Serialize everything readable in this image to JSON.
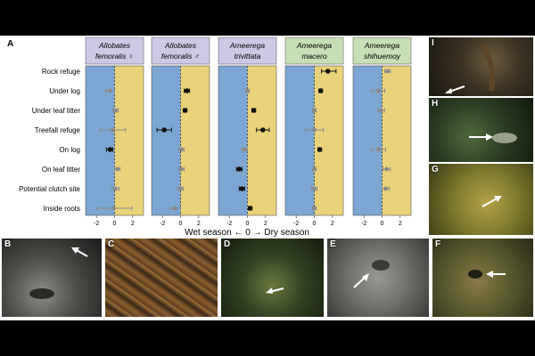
{
  "figure": {
    "main_panel_label": "A",
    "x_axis_caption": "Wet season ← 0 → Dry season",
    "photo_panels": [
      {
        "label": "B",
        "arrow": "arrow-icon"
      },
      {
        "label": "C",
        "arrow": ""
      },
      {
        "label": "D",
        "arrow": "arrow-icon"
      },
      {
        "label": "E",
        "arrow": "arrow-icon"
      },
      {
        "label": "F",
        "arrow": "arrow-icon"
      },
      {
        "label": "G",
        "arrow": "arrow-icon"
      },
      {
        "label": "H",
        "arrow": "arrow-icon"
      },
      {
        "label": "I",
        "arrow": "arrow-icon"
      }
    ]
  },
  "colors": {
    "wet": "#7aa6d1",
    "dry": "#ead27a",
    "header_purple": "#cfc7e6",
    "header_green": "#c6dfb4",
    "significant": "#111111",
    "nonsignificant": "#8a8a8a"
  },
  "chart_data": {
    "type": "forest_plot",
    "x_axis": {
      "ticks": [
        -2,
        0,
        2
      ],
      "range": [
        -3.2,
        3.2
      ]
    },
    "categories": [
      "Rock refuge",
      "Under log",
      "Under leaf litter",
      "Treefall refuge",
      "On log",
      "On leaf litter",
      "Potential clutch site",
      "Inside roots"
    ],
    "series": [
      {
        "name": "Allobates femoralis ♀",
        "header_color": "purple",
        "points": [
          {
            "est": null,
            "lo": null,
            "hi": null,
            "sig": false
          },
          {
            "est": -0.5,
            "lo": -1.0,
            "hi": 0.0,
            "sig": false
          },
          {
            "est": 0.1,
            "lo": -0.2,
            "hi": 0.4,
            "sig": false
          },
          {
            "est": -0.2,
            "lo": -1.6,
            "hi": 1.2,
            "sig": false
          },
          {
            "est": -0.5,
            "lo": -0.9,
            "hi": -0.2,
            "sig": true
          },
          {
            "est": 0.3,
            "lo": 0.0,
            "hi": 0.6,
            "sig": false
          },
          {
            "est": 0.1,
            "lo": -0.3,
            "hi": 0.5,
            "sig": false
          },
          {
            "est": -0.1,
            "lo": -2.0,
            "hi": 1.9,
            "sig": false
          }
        ]
      },
      {
        "name": "Allobates femoralis ♂",
        "header_color": "purple",
        "points": [
          {
            "est": null,
            "lo": null,
            "hi": null,
            "sig": false
          },
          {
            "est": 0.7,
            "lo": 0.4,
            "hi": 1.0,
            "sig": true
          },
          {
            "est": 0.5,
            "lo": 0.3,
            "hi": 0.7,
            "sig": true
          },
          {
            "est": -1.8,
            "lo": -2.6,
            "hi": -1.0,
            "sig": true
          },
          {
            "est": 0.1,
            "lo": -0.2,
            "hi": 0.4,
            "sig": false
          },
          {
            "est": 0.1,
            "lo": -0.2,
            "hi": 0.4,
            "sig": false
          },
          {
            "est": 0.0,
            "lo": -0.3,
            "hi": 0.3,
            "sig": false
          },
          {
            "est": -0.6,
            "lo": -1.2,
            "hi": 0.0,
            "sig": false
          }
        ]
      },
      {
        "name": "Ameerega trivittata",
        "header_color": "purple",
        "points": [
          {
            "est": null,
            "lo": null,
            "hi": null,
            "sig": false
          },
          {
            "est": 0.0,
            "lo": -0.2,
            "hi": 0.2,
            "sig": false
          },
          {
            "est": 0.7,
            "lo": 0.5,
            "hi": 0.9,
            "sig": true
          },
          {
            "est": 1.7,
            "lo": 1.0,
            "hi": 2.4,
            "sig": true
          },
          {
            "est": -0.3,
            "lo": -0.6,
            "hi": 0.0,
            "sig": false
          },
          {
            "est": -0.9,
            "lo": -1.2,
            "hi": -0.6,
            "sig": true
          },
          {
            "est": -0.6,
            "lo": -0.9,
            "hi": -0.3,
            "sig": true
          },
          {
            "est": 0.3,
            "lo": 0.1,
            "hi": 0.5,
            "sig": true
          }
        ]
      },
      {
        "name": "Ameerega macero",
        "header_color": "green",
        "points": [
          {
            "est": 1.5,
            "lo": 0.8,
            "hi": 2.4,
            "sig": true
          },
          {
            "est": 0.7,
            "lo": 0.5,
            "hi": 0.9,
            "sig": true
          },
          {
            "est": 0.0,
            "lo": -0.2,
            "hi": 0.2,
            "sig": false
          },
          {
            "est": 0.0,
            "lo": -1.0,
            "hi": 1.0,
            "sig": false
          },
          {
            "est": 0.6,
            "lo": 0.4,
            "hi": 0.8,
            "sig": true
          },
          {
            "est": 0.0,
            "lo": -0.2,
            "hi": 0.2,
            "sig": false
          },
          {
            "est": 0.0,
            "lo": -0.3,
            "hi": 0.3,
            "sig": false
          },
          {
            "est": 0.0,
            "lo": -0.2,
            "hi": 0.2,
            "sig": false
          }
        ]
      },
      {
        "name": "Ameerega shihuemoy",
        "header_color": "green",
        "points": [
          {
            "est": 0.6,
            "lo": 0.3,
            "hi": 0.9,
            "sig": false
          },
          {
            "est": -0.4,
            "lo": -1.1,
            "hi": 0.3,
            "sig": false
          },
          {
            "est": -0.1,
            "lo": -0.5,
            "hi": 0.3,
            "sig": false
          },
          {
            "est": null,
            "lo": null,
            "hi": null,
            "sig": false
          },
          {
            "est": -0.4,
            "lo": -1.2,
            "hi": 0.4,
            "sig": false
          },
          {
            "est": 0.5,
            "lo": 0.1,
            "hi": 0.9,
            "sig": false
          },
          {
            "est": 0.4,
            "lo": 0.0,
            "hi": 0.8,
            "sig": false
          },
          {
            "est": null,
            "lo": null,
            "hi": null,
            "sig": false
          }
        ]
      }
    ]
  }
}
